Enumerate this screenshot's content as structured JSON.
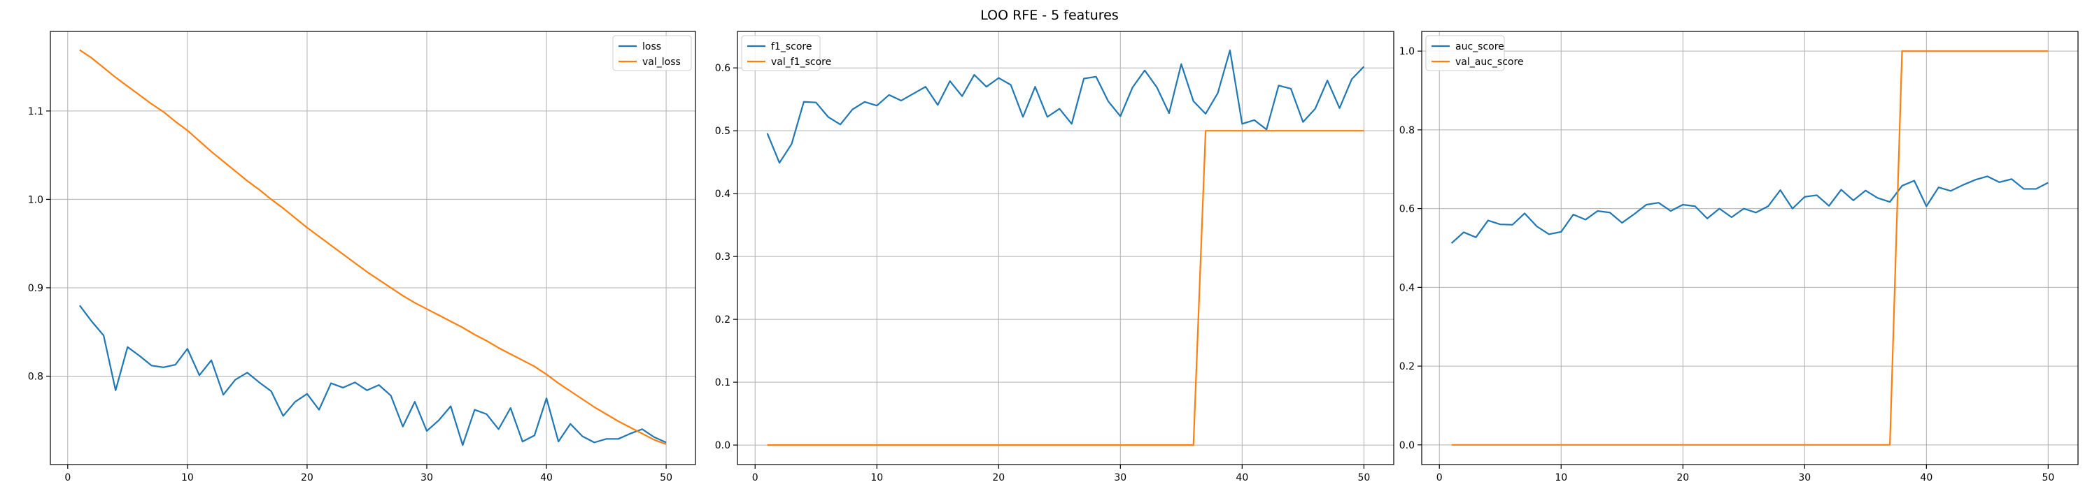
{
  "figure": {
    "suptitle": "LOO RFE - 5 features"
  },
  "colors": {
    "series1": "#1f77b4",
    "series2": "#ff7f0e",
    "grid": "#b0b0b0",
    "axes": "#000000"
  },
  "chart_data": [
    {
      "type": "line",
      "title": "",
      "xlabel": "",
      "ylabel": "",
      "grid": true,
      "legend_position": "top-right",
      "xlim": [
        -1.45,
        52.45
      ],
      "ylim": [
        0.7,
        1.19
      ],
      "xticks": [
        0,
        10,
        20,
        30,
        40,
        50
      ],
      "yticks": [
        0.8,
        0.9,
        1.0,
        1.1
      ],
      "ytick_labels": [
        "0.8",
        "0.9",
        "1.0",
        "1.1"
      ],
      "x": [
        1,
        2,
        3,
        4,
        5,
        6,
        7,
        8,
        9,
        10,
        11,
        12,
        13,
        14,
        15,
        16,
        17,
        18,
        19,
        20,
        21,
        22,
        23,
        24,
        25,
        26,
        27,
        28,
        29,
        30,
        31,
        32,
        33,
        34,
        35,
        36,
        37,
        38,
        39,
        40,
        41,
        42,
        43,
        44,
        45,
        46,
        47,
        48,
        49,
        50
      ],
      "series": [
        {
          "name": "loss",
          "values": [
            0.88,
            0.862,
            0.846,
            0.784,
            0.833,
            0.823,
            0.812,
            0.81,
            0.813,
            0.831,
            0.801,
            0.818,
            0.779,
            0.796,
            0.804,
            0.793,
            0.783,
            0.755,
            0.771,
            0.78,
            0.762,
            0.792,
            0.787,
            0.793,
            0.784,
            0.79,
            0.778,
            0.743,
            0.771,
            0.738,
            0.75,
            0.766,
            0.722,
            0.762,
            0.757,
            0.74,
            0.764,
            0.726,
            0.733,
            0.775,
            0.726,
            0.746,
            0.732,
            0.725,
            0.729,
            0.729,
            0.735,
            0.74,
            0.731,
            0.725
          ]
        },
        {
          "name": "val_loss",
          "values": [
            1.169,
            1.16,
            1.149,
            1.138,
            1.128,
            1.118,
            1.108,
            1.099,
            1.088,
            1.078,
            1.066,
            1.054,
            1.043,
            1.032,
            1.021,
            1.011,
            1.0,
            0.99,
            0.979,
            0.968,
            0.958,
            0.948,
            0.938,
            0.928,
            0.918,
            0.909,
            0.9,
            0.891,
            0.883,
            0.876,
            0.869,
            0.862,
            0.855,
            0.847,
            0.84,
            0.832,
            0.825,
            0.818,
            0.811,
            0.802,
            0.792,
            0.783,
            0.774,
            0.765,
            0.757,
            0.749,
            0.742,
            0.735,
            0.728,
            0.723
          ]
        }
      ]
    },
    {
      "type": "line",
      "title": "",
      "xlabel": "",
      "ylabel": "",
      "grid": true,
      "legend_position": "top-left",
      "xlim": [
        -1.45,
        52.45
      ],
      "ylim": [
        -0.031,
        0.658
      ],
      "xticks": [
        0,
        10,
        20,
        30,
        40,
        50
      ],
      "yticks": [
        0.0,
        0.1,
        0.2,
        0.3,
        0.4,
        0.5,
        0.6
      ],
      "ytick_labels": [
        "0.0",
        "0.1",
        "0.2",
        "0.3",
        "0.4",
        "0.5",
        "0.6"
      ],
      "x": [
        1,
        2,
        3,
        4,
        5,
        6,
        7,
        8,
        9,
        10,
        11,
        12,
        13,
        14,
        15,
        16,
        17,
        18,
        19,
        20,
        21,
        22,
        23,
        24,
        25,
        26,
        27,
        28,
        29,
        30,
        31,
        32,
        33,
        34,
        35,
        36,
        37,
        38,
        39,
        40,
        41,
        42,
        43,
        44,
        45,
        46,
        47,
        48,
        49,
        50
      ],
      "series": [
        {
          "name": "f1_score",
          "values": [
            0.496,
            0.449,
            0.479,
            0.546,
            0.545,
            0.522,
            0.51,
            0.534,
            0.546,
            0.54,
            0.557,
            0.548,
            0.559,
            0.57,
            0.541,
            0.579,
            0.555,
            0.589,
            0.57,
            0.584,
            0.573,
            0.522,
            0.57,
            0.522,
            0.535,
            0.511,
            0.583,
            0.586,
            0.547,
            0.523,
            0.569,
            0.596,
            0.569,
            0.528,
            0.606,
            0.547,
            0.527,
            0.56,
            0.628,
            0.511,
            0.517,
            0.502,
            0.572,
            0.567,
            0.514,
            0.535,
            0.58,
            0.536,
            0.582,
            0.602
          ]
        },
        {
          "name": "val_f1_score",
          "values": [
            0,
            0,
            0,
            0,
            0,
            0,
            0,
            0,
            0,
            0,
            0,
            0,
            0,
            0,
            0,
            0,
            0,
            0,
            0,
            0,
            0,
            0,
            0,
            0,
            0,
            0,
            0,
            0,
            0,
            0,
            0,
            0,
            0,
            0,
            0,
            0,
            0.5,
            0.5,
            0.5,
            0.5,
            0.5,
            0.5,
            0.5,
            0.5,
            0.5,
            0.5,
            0.5,
            0.5,
            0.5,
            0.5
          ]
        }
      ]
    },
    {
      "type": "line",
      "title": "",
      "xlabel": "",
      "ylabel": "",
      "grid": true,
      "legend_position": "top-left",
      "xlim": [
        -1.45,
        52.45
      ],
      "ylim": [
        -0.05,
        1.05
      ],
      "xticks": [
        0,
        10,
        20,
        30,
        40,
        50
      ],
      "yticks": [
        0.0,
        0.2,
        0.4,
        0.6,
        0.8,
        1.0
      ],
      "ytick_labels": [
        "0.0",
        "0.2",
        "0.4",
        "0.6",
        "0.8",
        "1.0"
      ],
      "x": [
        1,
        2,
        3,
        4,
        5,
        6,
        7,
        8,
        9,
        10,
        11,
        12,
        13,
        14,
        15,
        16,
        17,
        18,
        19,
        20,
        21,
        22,
        23,
        24,
        25,
        26,
        27,
        28,
        29,
        30,
        31,
        32,
        33,
        34,
        35,
        36,
        37,
        38,
        39,
        40,
        41,
        42,
        43,
        44,
        45,
        46,
        47,
        48,
        49,
        50
      ],
      "series": [
        {
          "name": "auc_score",
          "values": [
            0.512,
            0.54,
            0.527,
            0.57,
            0.56,
            0.559,
            0.588,
            0.555,
            0.535,
            0.541,
            0.585,
            0.572,
            0.594,
            0.59,
            0.564,
            0.586,
            0.61,
            0.615,
            0.594,
            0.61,
            0.606,
            0.575,
            0.6,
            0.578,
            0.6,
            0.59,
            0.606,
            0.647,
            0.6,
            0.63,
            0.634,
            0.607,
            0.648,
            0.621,
            0.646,
            0.627,
            0.617,
            0.658,
            0.671,
            0.606,
            0.654,
            0.645,
            0.66,
            0.673,
            0.682,
            0.667,
            0.675,
            0.65,
            0.65,
            0.666
          ]
        },
        {
          "name": "val_auc_score",
          "values": [
            0,
            0,
            0,
            0,
            0,
            0,
            0,
            0,
            0,
            0,
            0,
            0,
            0,
            0,
            0,
            0,
            0,
            0,
            0,
            0,
            0,
            0,
            0,
            0,
            0,
            0,
            0,
            0,
            0,
            0,
            0,
            0,
            0,
            0,
            0,
            0,
            0,
            1,
            1,
            1,
            1,
            1,
            1,
            1,
            1,
            1,
            1,
            1,
            1,
            1
          ]
        }
      ]
    }
  ]
}
